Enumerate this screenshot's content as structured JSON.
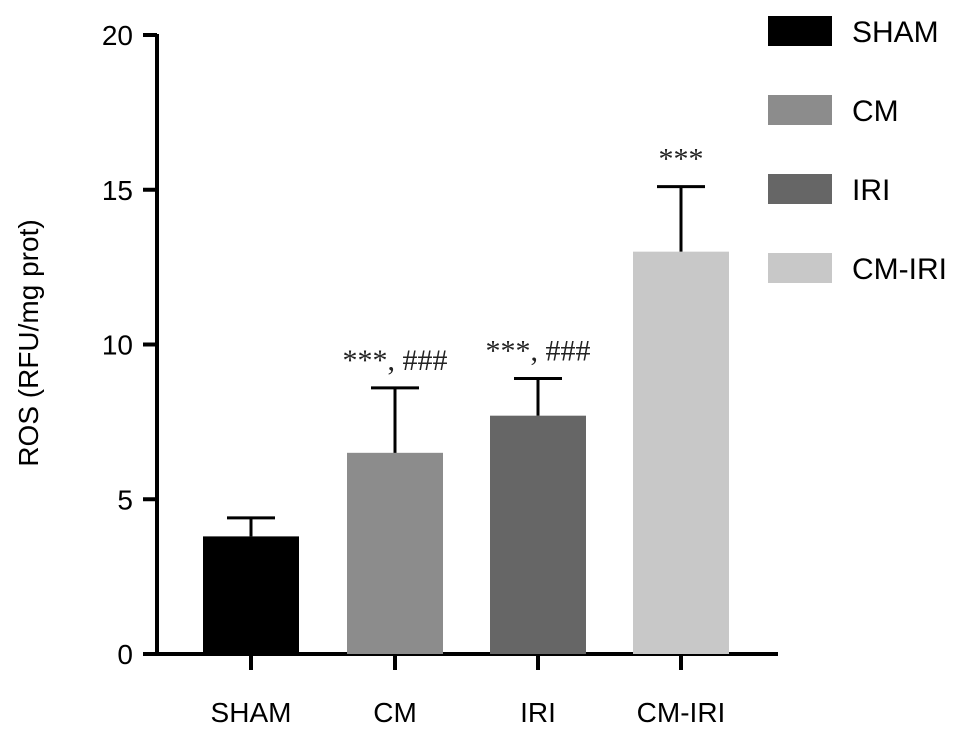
{
  "chart_data": {
    "type": "bar",
    "title": "",
    "xlabel": "",
    "ylabel": "ROS (RFU/mg prot)",
    "ylim": [
      0,
      20
    ],
    "yticks": [
      0,
      5,
      10,
      15,
      20
    ],
    "categories": [
      "SHAM",
      "CM",
      "IRI",
      "CM-IRI"
    ],
    "values": [
      3.8,
      6.5,
      7.7,
      13.0
    ],
    "errors": [
      0.6,
      2.1,
      1.2,
      2.1
    ],
    "annotations": [
      "",
      "***, ###",
      "***, ###",
      "***"
    ],
    "colors": [
      "#000000",
      "#8c8c8c",
      "#666666",
      "#c8c8c8"
    ],
    "legend": {
      "position": "top-right",
      "entries": [
        "SHAM",
        "CM",
        "IRI",
        "CM-IRI"
      ]
    },
    "grid": false
  }
}
